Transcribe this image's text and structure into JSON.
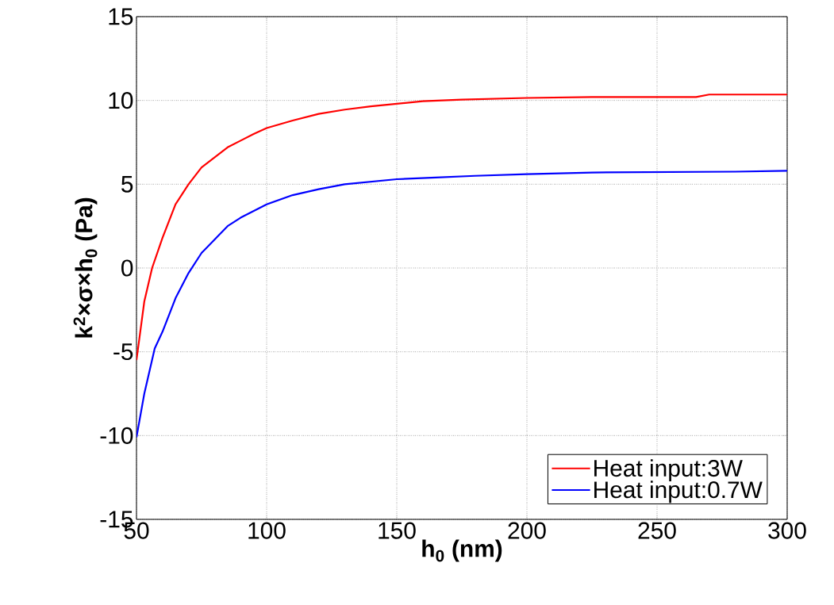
{
  "chart_data": {
    "type": "line",
    "xlabel": "h$_{0}$ (nm)",
    "ylabel": "k$^{2}$×σ×h$_{0}$ (Pa)",
    "xlim": [
      50,
      300
    ],
    "ylim": [
      -15,
      15
    ],
    "xticks": [
      50,
      100,
      150,
      200,
      250,
      300
    ],
    "yticks": [
      -15,
      -10,
      -5,
      0,
      5,
      10,
      15
    ],
    "grid": true,
    "legend": "bottom right",
    "marker": "none",
    "line_style": "solid",
    "series": [
      {
        "name": "Heat input:3W",
        "color": "#ff0000",
        "x": [
          50,
          53,
          56,
          60,
          65,
          70,
          75,
          80,
          85,
          90,
          95,
          100,
          110,
          120,
          130,
          140,
          150,
          160,
          175,
          200,
          225,
          265,
          270,
          300
        ],
        "values": [
          -5.5,
          -2,
          0,
          1.8,
          3.8,
          5,
          6,
          6.6,
          7.2,
          7.6,
          8.0,
          8.35,
          8.8,
          9.2,
          9.45,
          9.65,
          9.8,
          9.95,
          10.05,
          10.15,
          10.2,
          10.2,
          10.35,
          10.35
        ]
      },
      {
        "name": "Heat input:0.7W",
        "color": "#0000ff",
        "x": [
          50,
          53,
          57,
          60,
          65,
          70,
          75,
          80,
          85,
          90,
          100,
          110,
          120,
          130,
          140,
          150,
          165,
          180,
          200,
          225,
          280,
          300
        ],
        "values": [
          -10.1,
          -7.5,
          -4.8,
          -3.8,
          -1.8,
          -0.3,
          0.9,
          1.7,
          2.5,
          3.0,
          3.8,
          4.35,
          4.7,
          5.0,
          5.15,
          5.3,
          5.4,
          5.5,
          5.6,
          5.7,
          5.75,
          5.8
        ]
      }
    ]
  }
}
